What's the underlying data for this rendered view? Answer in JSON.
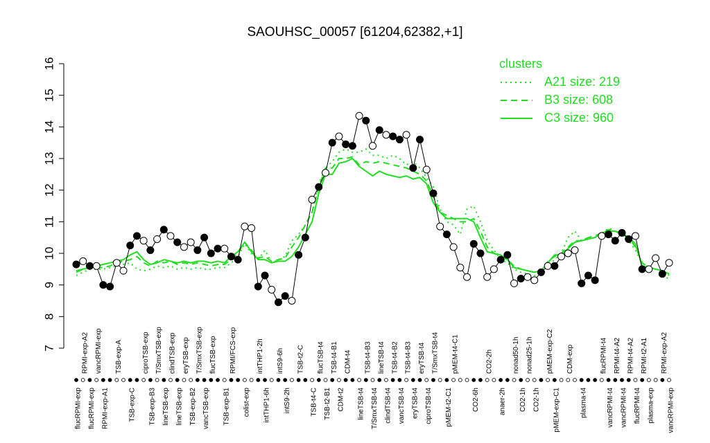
{
  "chart_data": {
    "type": "line",
    "title": "SAOUHSC_00057 [61204,62382,+1]",
    "ylim": [
      7,
      16
    ],
    "yticks": [
      7,
      8,
      9,
      10,
      11,
      12,
      13,
      14,
      15,
      16
    ],
    "legend_title": "clusters",
    "legend_position": "top-right",
    "categories": [
      "flucRPMI-exp",
      "RPMI-exp-A2",
      "flucRPMI-exp",
      "vancRPMI-exp",
      "RPMI-exp-A1",
      null,
      "TSB-exp-A",
      null,
      "TSB-exp-C",
      null,
      "ciproTSB-exp",
      "TSB-exp-B3",
      "T/SmxTSB-exp",
      "lineTSB-exp",
      "clindTSB-exp",
      "lineTSB-exp",
      "eryTSB-exp",
      "TSB-exp-B2",
      "T/SmxTSB-exp",
      "vancTSB-exp",
      "flucTSB-exp",
      null,
      "TSB-exp-B1",
      "RPMI/FCS-exp",
      null,
      "colist-exp",
      null,
      "intTHP1-2h",
      "intTHP1-6h",
      null,
      "intS9-6h",
      "intS9-2h",
      null,
      "TSB-t2-C",
      null,
      "TSB-t4-C",
      "flucTSB-t4",
      "TSB-t2-B1",
      "TSB-t4-B1",
      "CDM-t2",
      "CDM-t4",
      null,
      "lineTSB-t4",
      "TSB-t4-B3",
      "T/SmxTSB-t4",
      "lineTSB-t4",
      "clindTSB-t4",
      "TSB-t4-B2",
      "vancTSB-t4",
      "TSB-t4-B3",
      "eryTSB-t4",
      "eryTSB-t4",
      "ciproTSB-t4",
      "T/SmxTSB-t4",
      null,
      "pMEM-t2-C1",
      "pMEM-t4-C1",
      null,
      null,
      "CO2-6h",
      null,
      "CO2-2h",
      null,
      "anaer-2h",
      null,
      "nonad50-1h",
      "CO2-1h",
      "nonad25-1h",
      "CO2-1h",
      null,
      "pMEM-exp-C2",
      "pMEM-exp-C1",
      null,
      "CDM-exp",
      null,
      "plasma-t4",
      null,
      null,
      "flucRPMI-t4",
      "vancRPMI-t4",
      "RPMI-t4-A2",
      "vancRPMI-t4",
      "RPMI-t4-A2",
      "flucRPMI-t4",
      "RPMI-t2-A1",
      "plasma-exp",
      null,
      "RPMI-exp-A2",
      "vancRPMI-exp"
    ],
    "filled": [
      true,
      false,
      true,
      false,
      true,
      true,
      false,
      false,
      true,
      true,
      false,
      true,
      false,
      true,
      false,
      true,
      false,
      false,
      true,
      true,
      true,
      true,
      false,
      true,
      true,
      false,
      false,
      true,
      true,
      false,
      true,
      true,
      false,
      true,
      true,
      false,
      true,
      false,
      true,
      false,
      true,
      true,
      false,
      true,
      false,
      true,
      false,
      true,
      true,
      false,
      true,
      true,
      false,
      true,
      false,
      true,
      false,
      false,
      false,
      true,
      true,
      false,
      false,
      true,
      true,
      false,
      true,
      false,
      false,
      true,
      false,
      true,
      false,
      false,
      false,
      true,
      true,
      true,
      false,
      true,
      true,
      true,
      true,
      false,
      true,
      false,
      false,
      true,
      false
    ],
    "series": [
      {
        "name": "A21 size: 219",
        "color": "#22dd22",
        "dash": "dotted",
        "values": [
          9.3,
          9.4,
          9.5,
          9.5,
          9.5,
          9.55,
          9.6,
          9.65,
          9.7,
          9.5,
          9.45,
          9.5,
          9.6,
          9.55,
          9.6,
          9.5,
          9.55,
          9.5,
          9.55,
          9.5,
          9.5,
          9.55,
          9.55,
          9.7,
          9.9,
          10.3,
          10.0,
          9.8,
          10.1,
          9.7,
          9.8,
          9.9,
          10.4,
          10.6,
          10.9,
          11.3,
          12.2,
          12.7,
          12.9,
          13.2,
          13.3,
          13.2,
          13.2,
          13.3,
          13.1,
          13.1,
          13.0,
          13.1,
          13.0,
          12.8,
          12.9,
          12.7,
          12.4,
          12.1,
          11.4,
          11.0,
          10.9,
          10.6,
          11.4,
          11.5,
          11.0,
          10.4,
          10.1,
          9.8,
          9.7,
          9.5,
          9.4,
          9.35,
          9.3,
          9.35,
          9.6,
          9.8,
          10.0,
          10.5,
          10.7,
          10.4,
          10.5,
          10.5,
          10.6,
          10.8,
          10.7,
          10.6,
          10.4,
          10.1,
          9.7,
          9.55,
          9.5,
          9.4,
          9.15
        ]
      },
      {
        "name": "B3 size: 608",
        "color": "#22dd22",
        "dash": "dashed",
        "values": [
          9.4,
          9.5,
          9.55,
          9.55,
          9.55,
          9.6,
          9.7,
          9.75,
          9.8,
          9.9,
          9.7,
          9.6,
          9.75,
          9.7,
          9.75,
          9.65,
          9.7,
          9.65,
          9.7,
          9.65,
          9.6,
          9.65,
          9.65,
          9.8,
          10.0,
          10.35,
          10.1,
          9.85,
          9.9,
          9.75,
          9.8,
          9.85,
          10.2,
          10.5,
          10.9,
          11.3,
          12.1,
          12.7,
          12.7,
          13.0,
          13.0,
          13.05,
          12.8,
          12.9,
          12.85,
          12.9,
          12.85,
          12.8,
          12.75,
          12.7,
          12.6,
          12.5,
          12.3,
          11.8,
          11.3,
          11.2,
          11.1,
          11.0,
          11.0,
          11.1,
          10.7,
          10.2,
          10.0,
          9.9,
          9.8,
          9.6,
          9.5,
          9.45,
          9.4,
          9.4,
          9.75,
          9.9,
          10.0,
          10.2,
          10.4,
          10.4,
          10.5,
          10.55,
          10.65,
          10.75,
          10.7,
          10.6,
          10.5,
          10.2,
          9.7,
          9.55,
          9.5,
          9.45,
          9.3
        ]
      },
      {
        "name": "C3 size: 960",
        "color": "#22dd22",
        "dash": "solid",
        "values": [
          9.45,
          9.5,
          9.55,
          9.6,
          9.65,
          9.7,
          9.75,
          9.8,
          9.95,
          10.05,
          9.8,
          9.65,
          9.7,
          9.8,
          9.75,
          9.7,
          9.75,
          9.7,
          9.75,
          9.75,
          9.7,
          9.75,
          9.7,
          9.9,
          10.05,
          10.35,
          10.05,
          9.8,
          9.8,
          9.7,
          9.75,
          9.75,
          9.9,
          10.2,
          10.6,
          11.0,
          11.9,
          12.5,
          12.5,
          12.85,
          12.9,
          13.0,
          12.75,
          12.6,
          12.45,
          12.6,
          12.5,
          12.45,
          12.4,
          12.45,
          12.35,
          12.4,
          12.2,
          11.6,
          11.3,
          11.1,
          11.1,
          11.1,
          11.1,
          11.0,
          10.5,
          10.05,
          10.0,
          9.95,
          9.8,
          9.55,
          9.5,
          9.45,
          9.4,
          9.45,
          9.7,
          9.95,
          9.95,
          10.15,
          10.35,
          10.4,
          10.45,
          10.5,
          10.65,
          10.7,
          10.7,
          10.65,
          10.5,
          10.3,
          9.6,
          9.55,
          9.5,
          9.45,
          9.35
        ]
      },
      {
        "name": null,
        "color": "#000000",
        "dash": "solid",
        "values": [
          9.65,
          9.75,
          9.6,
          9.6,
          9.0,
          8.95,
          9.7,
          9.45,
          10.25,
          10.55,
          10.4,
          10.1,
          10.45,
          10.75,
          10.55,
          10.35,
          10.2,
          10.35,
          10.1,
          10.5,
          10.0,
          10.15,
          10.15,
          9.9,
          9.8,
          10.85,
          10.8,
          8.95,
          9.3,
          8.85,
          8.45,
          8.65,
          8.5,
          9.95,
          10.5,
          11.7,
          12.1,
          12.55,
          13.5,
          13.7,
          13.45,
          13.4,
          14.35,
          14.2,
          13.4,
          13.9,
          13.75,
          13.7,
          13.6,
          13.75,
          12.7,
          13.6,
          12.65,
          11.9,
          10.85,
          10.6,
          10.2,
          9.55,
          9.25,
          10.3,
          10.0,
          9.25,
          9.5,
          9.8,
          9.95,
          9.05,
          9.2,
          9.25,
          9.15,
          9.4,
          9.6,
          9.6,
          9.9,
          10.0,
          10.1,
          9.05,
          9.3,
          9.15,
          10.55,
          10.6,
          10.4,
          10.65,
          10.45,
          10.55,
          9.5,
          9.5,
          9.85,
          9.35,
          9.7
        ]
      }
    ]
  }
}
